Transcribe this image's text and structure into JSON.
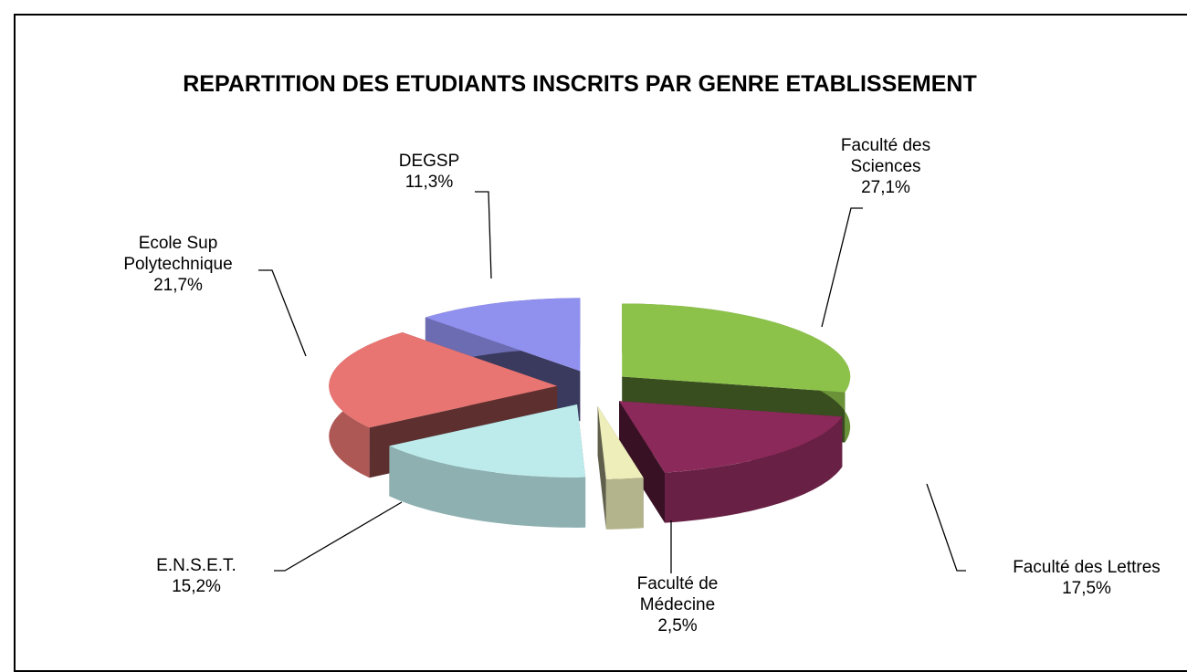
{
  "chart_data": {
    "type": "pie3d",
    "title": "REPARTITION DES ETUDIANTS INSCRITS PAR GENRE ETABLISSEMENT",
    "categories": [
      "Faculté des Sciences",
      "Faculté des Lettres",
      "Faculté de Médecine",
      "E.N.S.E.T.",
      "Ecole Sup Polytechnique",
      "DEGSP"
    ],
    "values": [
      27.1,
      17.5,
      2.5,
      15.2,
      21.7,
      11.3
    ],
    "value_labels": [
      "27,1%",
      "17,5%",
      "2,5%",
      "15,2%",
      "21,7%",
      "11,3%"
    ],
    "colors": [
      "#8dc24a",
      "#8b2a5a",
      "#eeeebb",
      "#bdebec",
      "#e87572",
      "#9090ee"
    ]
  }
}
